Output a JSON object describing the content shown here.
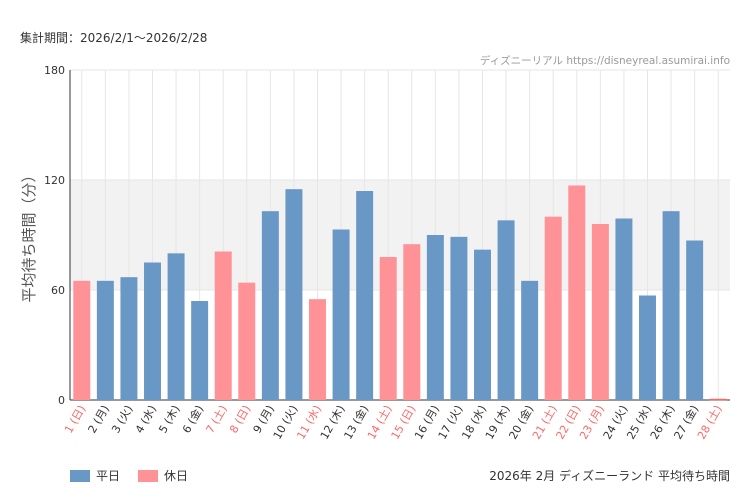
{
  "header": {
    "period": "集計期間：2026/2/1〜2026/2/28",
    "source": "ディズニーリアル https://disneyreal.asumirai.info"
  },
  "footer": {
    "caption": "2026年 2月 ディズニーランド 平均待ち時間"
  },
  "colors": {
    "weekday": "#6a98c6",
    "holiday": "#ff9296",
    "holiday_label": "#ff6666",
    "weekday_label": "#333333",
    "band": "#f2f2f2",
    "grid": "#e6e6e6"
  },
  "chart_data": {
    "type": "bar",
    "title": "",
    "ylabel": "平均待ち時間（分）",
    "xlabel": "",
    "ylim": [
      0,
      180
    ],
    "yticks": [
      0,
      60,
      120,
      180
    ],
    "shaded_band": [
      60,
      120
    ],
    "categories": [
      "1 (日)",
      "2 (月)",
      "3 (火)",
      "4 (水)",
      "5 (木)",
      "6 (金)",
      "7 (土)",
      "8 (日)",
      "9 (月)",
      "10 (火)",
      "11 (水)",
      "12 (木)",
      "13 (金)",
      "14 (土)",
      "15 (日)",
      "16 (月)",
      "17 (火)",
      "18 (水)",
      "19 (木)",
      "20 (金)",
      "21 (土)",
      "22 (日)",
      "23 (月)",
      "24 (火)",
      "25 (水)",
      "26 (木)",
      "27 (金)",
      "28 (土)"
    ],
    "day_type": [
      "休日",
      "平日",
      "平日",
      "平日",
      "平日",
      "平日",
      "休日",
      "休日",
      "平日",
      "平日",
      "休日",
      "平日",
      "平日",
      "休日",
      "休日",
      "平日",
      "平日",
      "平日",
      "平日",
      "平日",
      "休日",
      "休日",
      "休日",
      "平日",
      "平日",
      "平日",
      "平日",
      "休日"
    ],
    "values": [
      65,
      65,
      67,
      75,
      80,
      54,
      81,
      64,
      103,
      115,
      55,
      93,
      114,
      78,
      85,
      90,
      89,
      82,
      98,
      65,
      100,
      117,
      96,
      99,
      57,
      103,
      87,
      0
    ],
    "legend": [
      {
        "name": "平日",
        "color_key": "weekday"
      },
      {
        "name": "休日",
        "color_key": "holiday"
      }
    ]
  }
}
